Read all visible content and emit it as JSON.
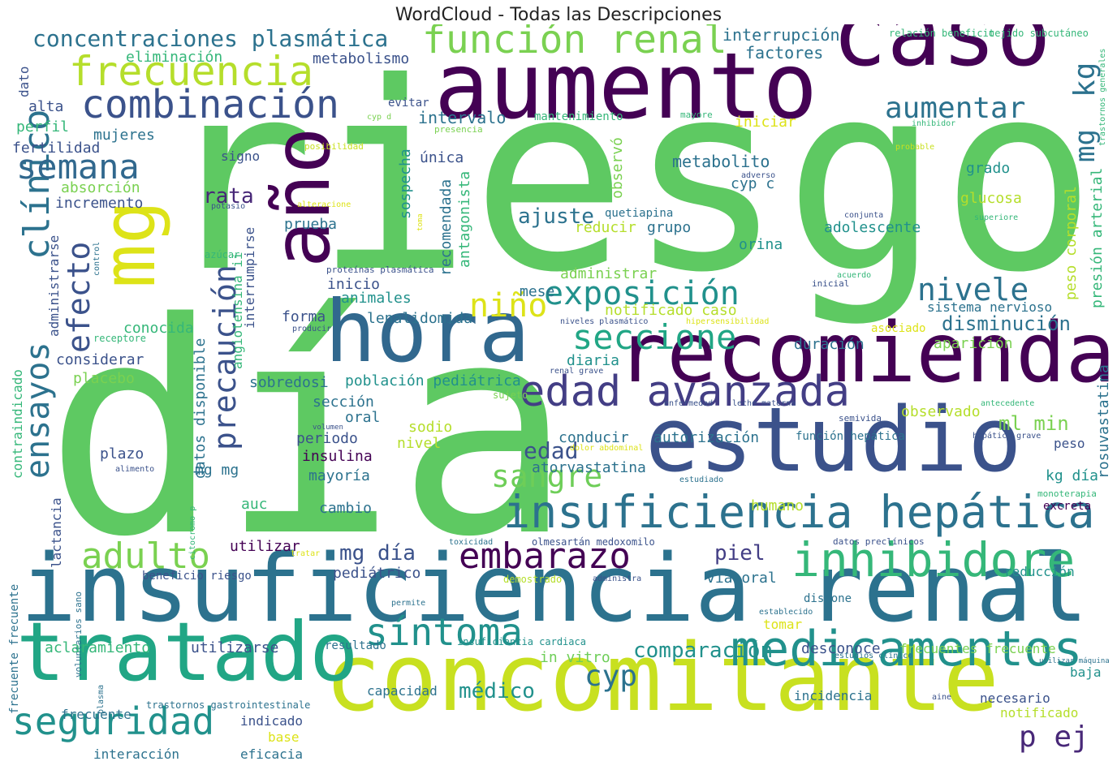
{
  "title": "WordCloud - Todas las Descripciones",
  "palette": [
    "#440154",
    "#482878",
    "#3e4a89",
    "#31688e",
    "#26828e",
    "#1f9e89",
    "#35b779",
    "#6ece58",
    "#b5de2b",
    "#fde725"
  ],
  "words": [
    {
      "text": "riesgo",
      "size": 380,
      "color": "#5ec962"
    },
    {
      "text": "día",
      "size": 360,
      "color": "#5ec962"
    },
    {
      "text": "insuficiencia renal",
      "size": 140,
      "color": "#2c728e"
    },
    {
      "text": "concomitante",
      "size": 115,
      "color": "#c8e020"
    },
    {
      "text": "aumento",
      "size": 112,
      "color": "#440154"
    },
    {
      "text": "caso",
      "size": 112,
      "color": "#440154"
    },
    {
      "text": "estudio",
      "size": 110,
      "color": "#3b528b"
    },
    {
      "text": "hora",
      "size": 105,
      "color": "#31688e"
    },
    {
      "text": "recomienda",
      "size": 102,
      "color": "#440154"
    },
    {
      "text": "tratado",
      "size": 100,
      "color": "#21a685"
    },
    {
      "text": "año",
      "size": 96,
      "color": "#440154"
    },
    {
      "text": "mg",
      "size": 90,
      "color": "#dde318"
    },
    {
      "text": "insuficiencia hepática",
      "size": 66,
      "color": "#2c728e"
    },
    {
      "text": "medicamentos",
      "size": 60,
      "color": "#21918c"
    },
    {
      "text": "inhibidore",
      "size": 58,
      "color": "#35b779"
    },
    {
      "text": "edad avanzada",
      "size": 52,
      "color": "#433e85"
    },
    {
      "text": "frecuencia",
      "size": 50,
      "color": "#b5de2b"
    },
    {
      "text": "combinación",
      "size": 48,
      "color": "#3b528b"
    },
    {
      "text": "función renal",
      "size": 48,
      "color": "#7ad151"
    },
    {
      "text": "seguridad",
      "size": 46,
      "color": "#21918c"
    },
    {
      "text": "síntoma",
      "size": 46,
      "color": "#21918c"
    },
    {
      "text": "embarazo",
      "size": 44,
      "color": "#440154"
    },
    {
      "text": "adulto",
      "size": 44,
      "color": "#7ad151"
    },
    {
      "text": "clínico",
      "size": 44,
      "color": "#2c728e"
    },
    {
      "text": "seccione",
      "size": 42,
      "color": "#21a685"
    },
    {
      "text": "semana",
      "size": 42,
      "color": "#31688e"
    },
    {
      "text": "exposición",
      "size": 40,
      "color": "#21918c"
    },
    {
      "text": "ensayos",
      "size": 40,
      "color": "#2c728e"
    },
    {
      "text": "niño",
      "size": 40,
      "color": "#dde318"
    },
    {
      "text": "sangre",
      "size": 38,
      "color": "#6ece58"
    },
    {
      "text": "precaución",
      "size": 38,
      "color": "#3b528b"
    },
    {
      "text": "nivele",
      "size": 38,
      "color": "#2c728e"
    },
    {
      "text": "efecto",
      "size": 38,
      "color": "#3b528b"
    },
    {
      "text": "cyp",
      "size": 36,
      "color": "#2c728e"
    },
    {
      "text": "aumentar",
      "size": 36,
      "color": "#2c728e"
    },
    {
      "text": "p ej",
      "size": 36,
      "color": "#482878"
    },
    {
      "text": "kg",
      "size": 36,
      "color": "#2c728e"
    },
    {
      "text": "mg",
      "size": 34,
      "color": "#2c728e"
    },
    {
      "text": "concentraciones plasmática",
      "size": 28,
      "color": "#2c728e"
    },
    {
      "text": "edad",
      "size": 28,
      "color": "#3b528b"
    },
    {
      "text": "comparación",
      "size": 26,
      "color": "#21918c"
    },
    {
      "text": "ajuste",
      "size": 26,
      "color": "#2c728e"
    },
    {
      "text": "mg día",
      "size": 26,
      "color": "#3b528b"
    },
    {
      "text": "médico",
      "size": 26,
      "color": "#21918c"
    },
    {
      "text": "piel",
      "size": 26,
      "color": "#433e85"
    },
    {
      "text": "rata",
      "size": 26,
      "color": "#482878"
    },
    {
      "text": "ml min",
      "size": 24,
      "color": "#7ad151"
    },
    {
      "text": "disminución",
      "size": 24,
      "color": "#2c728e"
    },
    {
      "text": "interrupción",
      "size": 20,
      "color": "#2c728e"
    },
    {
      "text": "factores",
      "size": 20,
      "color": "#2c728e"
    },
    {
      "text": "metabolismo",
      "size": 18,
      "color": "#3b528b"
    },
    {
      "text": "eliminación",
      "size": 18,
      "color": "#35b779"
    },
    {
      "text": "intervalo",
      "size": 20,
      "color": "#2c728e"
    },
    {
      "text": "mantenimiento",
      "size": 14,
      "color": "#35b779"
    },
    {
      "text": "iniciar",
      "size": 18,
      "color": "#dde318"
    },
    {
      "text": "mujeres",
      "size": 18,
      "color": "#2c728e"
    },
    {
      "text": "perfil",
      "size": 18,
      "color": "#35b779"
    },
    {
      "text": "alta",
      "size": 18,
      "color": "#3b528b"
    },
    {
      "text": "evitar",
      "size": 14,
      "color": "#3b528b"
    },
    {
      "text": "presencia",
      "size": 11,
      "color": "#7ad151"
    },
    {
      "text": "cyp d",
      "size": 10,
      "color": "#7ad151"
    },
    {
      "text": "mayore",
      "size": 11,
      "color": "#35b779"
    },
    {
      "text": "inhibidor",
      "size": 10,
      "color": "#35b779"
    },
    {
      "text": "relación beneficio",
      "size": 12,
      "color": "#35b779"
    },
    {
      "text": "tejido subcutáneo",
      "size": 12,
      "color": "#35b779"
    },
    {
      "text": "trastornos generales",
      "size": 10,
      "color": "#35b779"
    },
    {
      "text": "fertilidad",
      "size": 18,
      "color": "#3b528b"
    },
    {
      "text": "signo",
      "size": 16,
      "color": "#3b528b"
    },
    {
      "text": "posibilidad",
      "size": 11,
      "color": "#c8e020"
    },
    {
      "text": "sospecha",
      "size": 18,
      "color": "#21918c"
    },
    {
      "text": "única",
      "size": 18,
      "color": "#3b528b"
    },
    {
      "text": "observó",
      "size": 18,
      "color": "#7ad151"
    },
    {
      "text": "metabolito",
      "size": 20,
      "color": "#2c728e"
    },
    {
      "text": "grado",
      "size": 18,
      "color": "#21918c"
    },
    {
      "text": "probable",
      "size": 10,
      "color": "#c8e020"
    },
    {
      "text": "adverso",
      "size": 10,
      "color": "#3b528b"
    },
    {
      "text": "cyp c",
      "size": 18,
      "color": "#2c728e"
    },
    {
      "text": "glucosa",
      "size": 18,
      "color": "#b5de2b"
    },
    {
      "text": "absorción",
      "size": 18,
      "color": "#7ad151"
    },
    {
      "text": "incremento",
      "size": 18,
      "color": "#3b528b"
    },
    {
      "text": "recomendada",
      "size": 18,
      "color": "#2c728e"
    },
    {
      "text": "antagonista",
      "size": 18,
      "color": "#35b779"
    },
    {
      "text": "quetiapina",
      "size": 14,
      "color": "#2c728e"
    },
    {
      "text": "alteracione",
      "size": 10,
      "color": "#dde318"
    },
    {
      "text": "potasio",
      "size": 10,
      "color": "#3b528b"
    },
    {
      "text": "toma",
      "size": 9,
      "color": "#dde318"
    },
    {
      "text": "conjunta",
      "size": 10,
      "color": "#3b528b"
    },
    {
      "text": "superiore",
      "size": 10,
      "color": "#35b779"
    },
    {
      "text": "peso corporal",
      "size": 18,
      "color": "#b5de2b"
    },
    {
      "text": "presión arterial",
      "size": 18,
      "color": "#35b779"
    },
    {
      "text": "prueba",
      "size": 18,
      "color": "#2c728e"
    },
    {
      "text": "reducir",
      "size": 18,
      "color": "#b5de2b"
    },
    {
      "text": "grupo",
      "size": 18,
      "color": "#2c728e"
    },
    {
      "text": "adolescente",
      "size": 18,
      "color": "#21918c"
    },
    {
      "text": "orina",
      "size": 18,
      "color": "#21918c"
    },
    {
      "text": "azúcar",
      "size": 12,
      "color": "#35b779"
    },
    {
      "text": "control",
      "size": 10,
      "color": "#2c728e"
    },
    {
      "text": "administrarse",
      "size": 16,
      "color": "#3b528b"
    },
    {
      "text": "interrumpirse",
      "size": 16,
      "color": "#3b528b"
    },
    {
      "text": "angiotensina ii",
      "size": 16,
      "color": "#35b779"
    },
    {
      "text": "administrar",
      "size": 18,
      "color": "#7ad151"
    },
    {
      "text": "proteínas plasmática",
      "size": 11,
      "color": "#3b528b"
    },
    {
      "text": "acuerdo",
      "size": 10,
      "color": "#35b779"
    },
    {
      "text": "inicial",
      "size": 11,
      "color": "#3b528b"
    },
    {
      "text": "inicio",
      "size": 18,
      "color": "#3b528b"
    },
    {
      "text": "animales",
      "size": 18,
      "color": "#21918c"
    },
    {
      "text": "mese",
      "size": 18,
      "color": "#2c728e"
    },
    {
      "text": "notificado caso",
      "size": 18,
      "color": "#b5de2b"
    },
    {
      "text": "sistema nervioso",
      "size": 16,
      "color": "#2c728e"
    },
    {
      "text": "forma",
      "size": 18,
      "color": "#3b528b"
    },
    {
      "text": "lenalidomida",
      "size": 18,
      "color": "#2c728e"
    },
    {
      "text": "niveles plasmático",
      "size": 10,
      "color": "#3b528b"
    },
    {
      "text": "hipersensibilidad",
      "size": 10,
      "color": "#dde318"
    },
    {
      "text": "asociado",
      "size": 14,
      "color": "#dde318"
    },
    {
      "text": "conocida",
      "size": 18,
      "color": "#35b779"
    },
    {
      "text": "producir",
      "size": 10,
      "color": "#3b528b"
    },
    {
      "text": "receptore",
      "size": 12,
      "color": "#35b779"
    },
    {
      "text": "considerar",
      "size": 18,
      "color": "#3b528b"
    },
    {
      "text": "duración",
      "size": 18,
      "color": "#2c728e"
    },
    {
      "text": "aparición",
      "size": 18,
      "color": "#7ad151"
    },
    {
      "text": "diaria",
      "size": 18,
      "color": "#21918c"
    },
    {
      "text": "datos disponible",
      "size": 18,
      "color": "#2c728e"
    },
    {
      "text": "placebo",
      "size": 18,
      "color": "#7ad151"
    },
    {
      "text": "sobredosi",
      "size": 18,
      "color": "#2c728e"
    },
    {
      "text": "población pediátrica",
      "size": 18,
      "color": "#21918c"
    },
    {
      "text": "renal grave",
      "size": 10,
      "color": "#3b528b"
    },
    {
      "text": "sujeto",
      "size": 12,
      "color": "#7ad151"
    },
    {
      "text": "rosuvastatina",
      "size": 18,
      "color": "#2c728e"
    },
    {
      "text": "contraindicado",
      "size": 16,
      "color": "#35b779"
    },
    {
      "text": "sección",
      "size": 18,
      "color": "#2c728e"
    },
    {
      "text": "enfermedad",
      "size": 10,
      "color": "#3b528b"
    },
    {
      "text": "leche materna",
      "size": 10,
      "color": "#3b528b"
    },
    {
      "text": "antecedente",
      "size": 10,
      "color": "#35b779"
    },
    {
      "text": "semivida",
      "size": 11,
      "color": "#3b528b"
    },
    {
      "text": "observado",
      "size": 18,
      "color": "#b5de2b"
    },
    {
      "text": "oral",
      "size": 18,
      "color": "#2c728e"
    },
    {
      "text": "periodo",
      "size": 18,
      "color": "#3b528b"
    },
    {
      "text": "sodio",
      "size": 18,
      "color": "#b5de2b"
    },
    {
      "text": "volumen",
      "size": 9,
      "color": "#3b528b"
    },
    {
      "text": "conducir",
      "size": 18,
      "color": "#2c728e"
    },
    {
      "text": "autorización",
      "size": 18,
      "color": "#2c728e"
    },
    {
      "text": "función hepática",
      "size": 14,
      "color": "#2c728e"
    },
    {
      "text": "hepática grave",
      "size": 10,
      "color": "#3b528b"
    },
    {
      "text": "peso",
      "size": 16,
      "color": "#3b528b"
    },
    {
      "text": "insulina",
      "size": 18,
      "color": "#440154"
    },
    {
      "text": "nivel",
      "size": 18,
      "color": "#b5de2b"
    },
    {
      "text": "dolor abdominal",
      "size": 10,
      "color": "#dde318"
    },
    {
      "text": "plazo",
      "size": 18,
      "color": "#3b528b"
    },
    {
      "text": "mg mg",
      "size": 18,
      "color": "#2c728e"
    },
    {
      "text": "alimento",
      "size": 10,
      "color": "#3b528b"
    },
    {
      "text": "mayoría",
      "size": 18,
      "color": "#2c728e"
    },
    {
      "text": "atorvastatina",
      "size": 18,
      "color": "#2c728e"
    },
    {
      "text": "kg día",
      "size": 18,
      "color": "#21918c"
    },
    {
      "text": "estudiado",
      "size": 10,
      "color": "#2c728e"
    },
    {
      "text": "monoterapia",
      "size": 11,
      "color": "#35b779"
    },
    {
      "text": "excreta",
      "size": 14,
      "color": "#440154"
    },
    {
      "text": "auc",
      "size": 18,
      "color": "#35b779"
    },
    {
      "text": "cambio",
      "size": 18,
      "color": "#2c728e"
    },
    {
      "text": "humano",
      "size": 18,
      "color": "#b5de2b"
    },
    {
      "text": "citocromo p",
      "size": 10,
      "color": "#35b779"
    },
    {
      "text": "lactancia",
      "size": 16,
      "color": "#3b528b"
    },
    {
      "text": "toxicidad",
      "size": 10,
      "color": "#2c728e"
    },
    {
      "text": "olmesartán medoxomilo",
      "size": 12,
      "color": "#3b528b"
    },
    {
      "text": "datos preclínicos",
      "size": 11,
      "color": "#3b528b"
    },
    {
      "text": "reducción",
      "size": 16,
      "color": "#21918c"
    },
    {
      "text": "utilizar",
      "size": 18,
      "color": "#440154"
    },
    {
      "text": "tratar",
      "size": 10,
      "color": "#dde318"
    },
    {
      "text": "pediátrico",
      "size": 18,
      "color": "#3b528b"
    },
    {
      "text": "vía oral",
      "size": 18,
      "color": "#2c728e"
    },
    {
      "text": "beneficio riesgo",
      "size": 14,
      "color": "#3b528b"
    },
    {
      "text": "demostrado",
      "size": 12,
      "color": "#b5de2b"
    },
    {
      "text": "administra",
      "size": 10,
      "color": "#3b528b"
    },
    {
      "text": "dispone",
      "size": 14,
      "color": "#2c728e"
    },
    {
      "text": "permite",
      "size": 10,
      "color": "#2c728e"
    },
    {
      "text": "establecido",
      "size": 10,
      "color": "#2c728e"
    },
    {
      "text": "tomar",
      "size": 16,
      "color": "#dde318"
    },
    {
      "text": "frecuente frecuente",
      "size": 14,
      "color": "#2c728e"
    },
    {
      "text": "voluntarios sano",
      "size": 11,
      "color": "#2c728e"
    },
    {
      "text": "aclaramiento",
      "size": 18,
      "color": "#35b779"
    },
    {
      "text": "utilizarse",
      "size": 18,
      "color": "#3b528b"
    },
    {
      "text": "resultado",
      "size": 14,
      "color": "#2c728e"
    },
    {
      "text": "insuficiencia cardiaca",
      "size": 12,
      "color": "#21918c"
    },
    {
      "text": "in vitro",
      "size": 18,
      "color": "#6ece58"
    },
    {
      "text": "desconoce",
      "size": 18,
      "color": "#3b528b"
    },
    {
      "text": "frecuentes frecuente",
      "size": 16,
      "color": "#7ad151"
    },
    {
      "text": "utilizar máquina",
      "size": 10,
      "color": "#2c728e"
    },
    {
      "text": "estudios clínico",
      "size": 10,
      "color": "#2c728e"
    },
    {
      "text": "baja",
      "size": 16,
      "color": "#21918c"
    },
    {
      "text": "capacidad",
      "size": 16,
      "color": "#2c728e"
    },
    {
      "text": "incidencia",
      "size": 16,
      "color": "#2c728e"
    },
    {
      "text": "necesario",
      "size": 16,
      "color": "#3b528b"
    },
    {
      "text": "plasma",
      "size": 10,
      "color": "#2c728e"
    },
    {
      "text": "trastornos gastrointestinale",
      "size": 12,
      "color": "#2c728e"
    },
    {
      "text": "aine",
      "size": 10,
      "color": "#3b528b"
    },
    {
      "text": "notificado",
      "size": 16,
      "color": "#b5de2b"
    },
    {
      "text": "frecuente",
      "size": 16,
      "color": "#2c728e"
    },
    {
      "text": "indicado",
      "size": 16,
      "color": "#3b528b"
    },
    {
      "text": "base",
      "size": 16,
      "color": "#dde318"
    },
    {
      "text": "interacción",
      "size": 16,
      "color": "#2c728e"
    },
    {
      "text": "eficacia",
      "size": 16,
      "color": "#2c728e"
    },
    {
      "text": "dato",
      "size": 16,
      "color": "#3b528b"
    }
  ]
}
